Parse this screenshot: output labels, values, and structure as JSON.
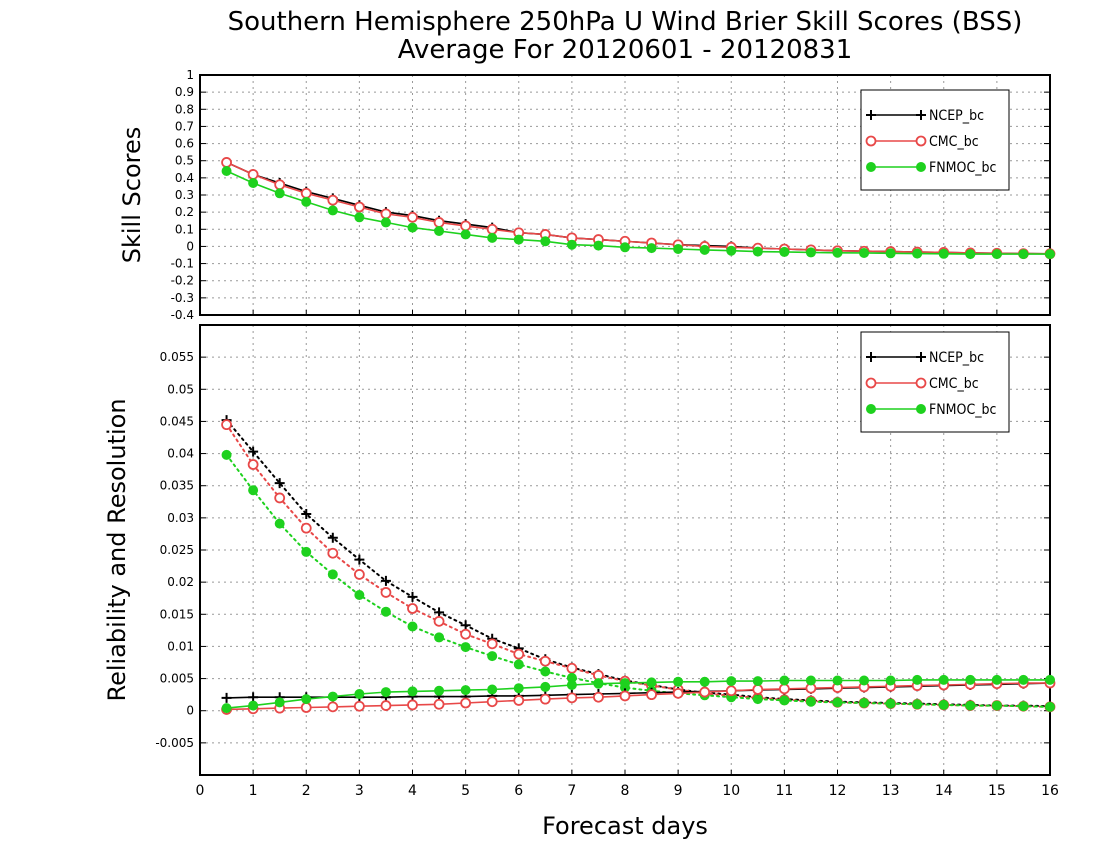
{
  "title_line1": "Southern Hemisphere 250hPa U Wind Brier Skill Scores (BSS)",
  "title_line2": "Average For 20120601 - 20120831",
  "xlabel": "Forecast days",
  "colors": {
    "NCEP_bc": "#000000",
    "CMC_bc": "#e84848",
    "FNMOC_bc": "#1ed11e"
  },
  "chart_data": [
    {
      "type": "line",
      "ylabel": "Skill Scores",
      "xlim": [
        0,
        16
      ],
      "ylim": [
        -0.4,
        1
      ],
      "grid": true,
      "legend_position": "top-right",
      "x_ticks": [
        "0",
        "1",
        "2",
        "3",
        "4",
        "5",
        "6",
        "7",
        "8",
        "9",
        "10",
        "11",
        "12",
        "13",
        "14",
        "15",
        "16"
      ],
      "y_ticks": [
        "-0.4",
        "-0.3",
        "-0.2",
        "-0.1",
        "0",
        "0.1",
        "0.2",
        "0.3",
        "0.4",
        "0.5",
        "0.6",
        "0.7",
        "0.8",
        "0.9",
        "1"
      ],
      "x": [
        0.5,
        1,
        1.5,
        2,
        2.5,
        3,
        3.5,
        4,
        4.5,
        5,
        5.5,
        6,
        6.5,
        7,
        7.5,
        8,
        8.5,
        9,
        9.5,
        10,
        10.5,
        11,
        11.5,
        12,
        12.5,
        13,
        13.5,
        14,
        14.5,
        15,
        15.5,
        16
      ],
      "series": [
        {
          "name": "NCEP_bc",
          "marker": "plus",
          "linestyle": "solid",
          "values": [
            0.49,
            0.42,
            0.37,
            0.32,
            0.28,
            0.24,
            0.2,
            0.18,
            0.15,
            0.13,
            0.11,
            0.08,
            0.07,
            0.05,
            0.04,
            0.03,
            0.02,
            0.01,
            0.005,
            0.0,
            -0.01,
            -0.015,
            -0.02,
            -0.025,
            -0.028,
            -0.03,
            -0.033,
            -0.035,
            -0.038,
            -0.04,
            -0.042,
            -0.043
          ]
        },
        {
          "name": "CMC_bc",
          "marker": "open-circle",
          "linestyle": "solid",
          "values": [
            0.49,
            0.42,
            0.36,
            0.31,
            0.27,
            0.23,
            0.19,
            0.17,
            0.14,
            0.12,
            0.1,
            0.08,
            0.07,
            0.05,
            0.04,
            0.03,
            0.02,
            0.01,
            0.0,
            -0.005,
            -0.01,
            -0.015,
            -0.02,
            -0.025,
            -0.028,
            -0.03,
            -0.033,
            -0.035,
            -0.038,
            -0.04,
            -0.042,
            -0.043
          ]
        },
        {
          "name": "FNMOC_bc",
          "marker": "filled-circle",
          "linestyle": "solid",
          "values": [
            0.44,
            0.37,
            0.31,
            0.26,
            0.21,
            0.17,
            0.14,
            0.11,
            0.09,
            0.07,
            0.05,
            0.04,
            0.03,
            0.01,
            0.005,
            -0.005,
            -0.01,
            -0.015,
            -0.02,
            -0.025,
            -0.03,
            -0.032,
            -0.035,
            -0.037,
            -0.038,
            -0.04,
            -0.042,
            -0.043,
            -0.045,
            -0.045,
            -0.045,
            -0.045
          ]
        }
      ]
    },
    {
      "type": "line",
      "ylabel": "Reliability and Resolution",
      "xlim": [
        0,
        16
      ],
      "ylim": [
        -0.01,
        0.06
      ],
      "grid": true,
      "legend_position": "top-right",
      "x_ticks": [
        "0",
        "1",
        "2",
        "3",
        "4",
        "5",
        "6",
        "7",
        "8",
        "9",
        "10",
        "11",
        "12",
        "13",
        "14",
        "15",
        "16"
      ],
      "y_ticks": [
        "-0.005",
        "0",
        "0.005",
        "0.01",
        "0.015",
        "0.02",
        "0.025",
        "0.03",
        "0.035",
        "0.04",
        "0.045",
        "0.05",
        "0.055"
      ],
      "x": [
        0.5,
        1,
        1.5,
        2,
        2.5,
        3,
        3.5,
        4,
        4.5,
        5,
        5.5,
        6,
        6.5,
        7,
        7.5,
        8,
        8.5,
        9,
        9.5,
        10,
        10.5,
        11,
        11.5,
        12,
        12.5,
        13,
        13.5,
        14,
        14.5,
        15,
        15.5,
        16
      ],
      "series": [
        {
          "name": "NCEP_bc",
          "marker": "plus",
          "linestyle": "dotted",
          "values": [
            0.0452,
            0.0403,
            0.0354,
            0.0306,
            0.0269,
            0.0235,
            0.0202,
            0.0177,
            0.0153,
            0.0133,
            0.0112,
            0.0097,
            0.008,
            0.0067,
            0.0057,
            0.0047,
            0.004,
            0.0033,
            0.0028,
            0.0025,
            0.0021,
            0.0018,
            0.0016,
            0.0014,
            0.0013,
            0.0012,
            0.0011,
            0.001,
            0.0009,
            0.0008,
            0.0008,
            0.0007
          ]
        },
        {
          "name": "CMC_bc",
          "marker": "open-circle",
          "linestyle": "dotted",
          "values": [
            0.0445,
            0.0383,
            0.0331,
            0.0284,
            0.0245,
            0.0212,
            0.0184,
            0.0159,
            0.0139,
            0.0119,
            0.0104,
            0.0088,
            0.0077,
            0.0066,
            0.0055,
            0.0046,
            0.0039,
            0.0033,
            0.0027,
            0.0023,
            0.002,
            0.0017,
            0.0015,
            0.0013,
            0.0012,
            0.0011,
            0.001,
            0.0009,
            0.0008,
            0.0008,
            0.0007,
            0.0006
          ]
        },
        {
          "name": "FNMOC_bc",
          "marker": "filled-circle",
          "linestyle": "dotted",
          "values": [
            0.0398,
            0.0343,
            0.0291,
            0.0247,
            0.0212,
            0.018,
            0.0154,
            0.0131,
            0.0114,
            0.0099,
            0.0085,
            0.0072,
            0.0061,
            0.0051,
            0.0043,
            0.0036,
            0.0031,
            0.0027,
            0.0024,
            0.0021,
            0.0018,
            0.0016,
            0.0014,
            0.0013,
            0.0012,
            0.0011,
            0.001,
            0.0009,
            0.0008,
            0.0008,
            0.0007,
            0.0006
          ]
        },
        {
          "name": "NCEP_bc",
          "marker": "plus",
          "linestyle": "solid",
          "values": [
            0.002,
            0.0021,
            0.0021,
            0.0021,
            0.0021,
            0.0021,
            0.0021,
            0.0022,
            0.0022,
            0.0022,
            0.0023,
            0.0023,
            0.0024,
            0.0025,
            0.0026,
            0.0027,
            0.0028,
            0.0029,
            0.003,
            0.0031,
            0.0032,
            0.0033,
            0.0034,
            0.0035,
            0.0036,
            0.0037,
            0.0038,
            0.0039,
            0.004,
            0.0041,
            0.0042,
            0.0043
          ]
        },
        {
          "name": "CMC_bc",
          "marker": "open-circle",
          "linestyle": "solid",
          "values": [
            0.0002,
            0.0003,
            0.0004,
            0.0005,
            0.0006,
            0.0007,
            0.0008,
            0.0009,
            0.001,
            0.0012,
            0.0014,
            0.0016,
            0.0018,
            0.002,
            0.0021,
            0.0023,
            0.0025,
            0.0027,
            0.0029,
            0.0031,
            0.0033,
            0.0034,
            0.0035,
            0.0036,
            0.0037,
            0.0038,
            0.0039,
            0.004,
            0.0041,
            0.0042,
            0.0043,
            0.0043
          ]
        },
        {
          "name": "FNMOC_bc",
          "marker": "filled-circle",
          "linestyle": "solid",
          "values": [
            0.0004,
            0.0008,
            0.0013,
            0.0018,
            0.0022,
            0.0026,
            0.0029,
            0.003,
            0.0031,
            0.0032,
            0.0033,
            0.0035,
            0.0037,
            0.004,
            0.0042,
            0.0043,
            0.0044,
            0.0045,
            0.0045,
            0.0046,
            0.0046,
            0.0047,
            0.0047,
            0.0047,
            0.0047,
            0.0047,
            0.0048,
            0.0048,
            0.0048,
            0.0048,
            0.0048,
            0.0048
          ]
        }
      ]
    }
  ]
}
